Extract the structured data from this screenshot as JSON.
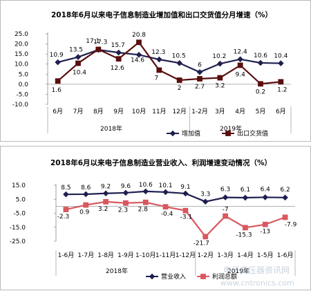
{
  "watermark": {
    "site_name": "电子变压器资讯网",
    "site_url": "www.cntronics.com"
  },
  "chart_data": [
    {
      "type": "line",
      "title": "2018年6月以来电子信息制造业增加值和出口交货值分月增速（%）",
      "categories": [
        "6月",
        "7月",
        "8月",
        "9月",
        "10月",
        "11月",
        "12月",
        "1-2月",
        "3月",
        "4月",
        "5月",
        "6月"
      ],
      "year_labels": [
        "2018年",
        "2019年"
      ],
      "ylim": [
        -10.0,
        25.0
      ],
      "yticks": [
        "25.0",
        "20.0",
        "15.0",
        "10.0",
        "5.0",
        "0.0",
        "-5.0",
        "-10.0"
      ],
      "grid": false,
      "legend_position": "bottom-right",
      "series": [
        {
          "name": "增加值",
          "color": "#1f1f4f",
          "marker": "diamond",
          "values": [
            10.9,
            13.5,
            17.1,
            15.7,
            14.6,
            12.3,
            10.5,
            6.0,
            10.2,
            12.4,
            10.6,
            10.4
          ]
        },
        {
          "name": "出口交货值",
          "color": "#5a0e0e",
          "marker": "square",
          "values": [
            1.6,
            10.4,
            17.3,
            12.6,
            20.8,
            7.0,
            2.0,
            2.7,
            3.2,
            9.4,
            0.2,
            1.2
          ]
        }
      ]
    },
    {
      "type": "line",
      "title": "2018年6月以来电子信息制造业营业收入、利润增速变动情况（%）",
      "categories": [
        "1-6月",
        "1-7月",
        "1-8月",
        "1-9月",
        "1-10月",
        "1-11月",
        "1-12月",
        "1-2月",
        "1-3月",
        "1-4月",
        "1-5月",
        "1-6月"
      ],
      "year_labels": [
        "2018年",
        "2019年"
      ],
      "ylim": [
        -25.0,
        15.0
      ],
      "yticks": [
        "15.0",
        "5.0",
        "-5.0",
        "-15.0",
        "-25.0"
      ],
      "grid": false,
      "legend_position": "bottom-center",
      "series": [
        {
          "name": "营业收入",
          "color": "#1f1f4f",
          "marker": "diamond",
          "values": [
            8.5,
            8.6,
            9.2,
            9.6,
            10.6,
            10.1,
            9.1,
            3.3,
            6.3,
            6.1,
            6.4,
            6.2
          ]
        },
        {
          "name": "利润总额",
          "color": "#d9585f",
          "marker": "square",
          "values": [
            -2.3,
            0.9,
            3.2,
            2.3,
            2.8,
            -0.4,
            -3.1,
            -21.7,
            -7.0,
            -15.3,
            -13.0,
            -7.9
          ]
        }
      ]
    }
  ]
}
